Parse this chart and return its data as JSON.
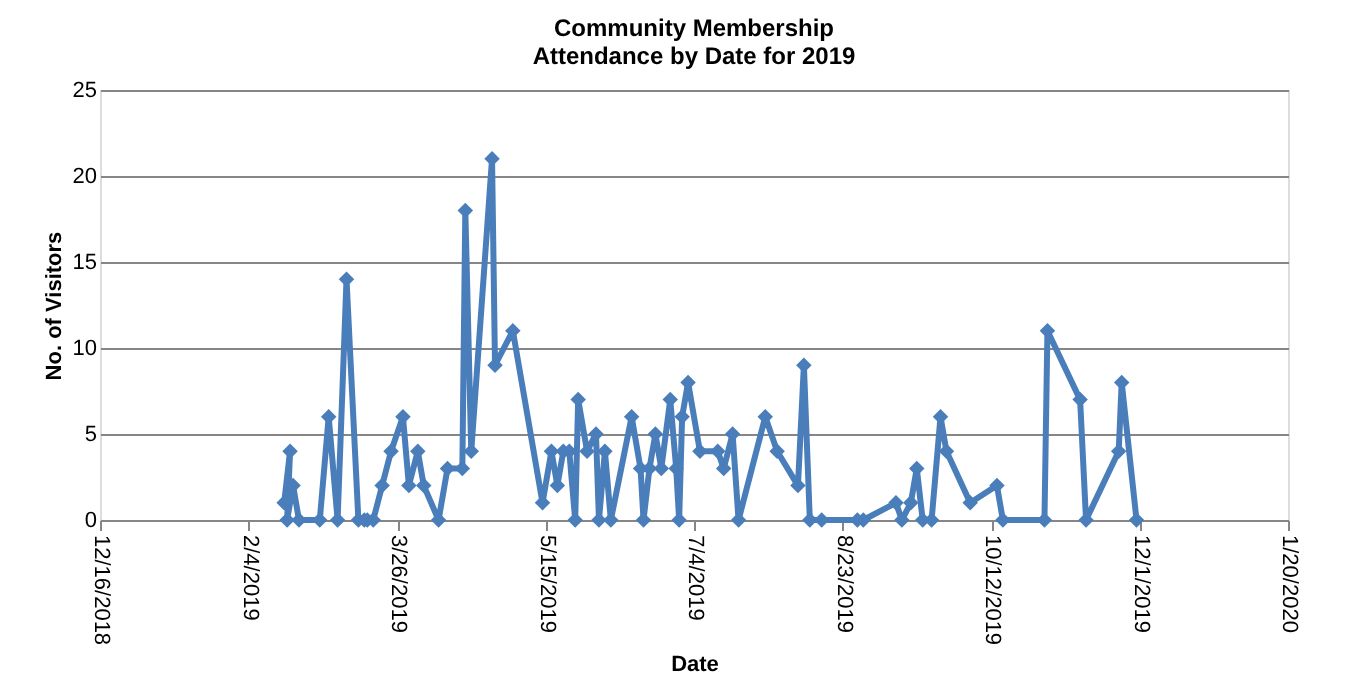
{
  "chart_data": {
    "type": "line",
    "title": "Community  Membership\nAttendance by Date for 2019",
    "xlabel": "Date",
    "ylabel": "No. of Visitors",
    "x": [
      "2019-02-16",
      "2019-02-18",
      "2019-02-17",
      "2019-02-19",
      "2019-02-21",
      "2019-02-28",
      "2019-03-03",
      "2019-03-06",
      "2019-03-09",
      "2019-03-13",
      "2019-03-15",
      "2019-03-16",
      "2019-03-18",
      "2019-03-21",
      "2019-03-24",
      "2019-03-28",
      "2019-03-30",
      "2019-04-02",
      "2019-04-04",
      "2019-04-09",
      "2019-04-12",
      "2019-04-17",
      "2019-04-18",
      "2019-04-20",
      "2019-04-27",
      "2019-04-28",
      "2019-05-04",
      "2019-05-14",
      "2019-05-17",
      "2019-05-19",
      "2019-05-21",
      "2019-05-23",
      "2019-05-25",
      "2019-05-26",
      "2019-05-29",
      "2019-06-01",
      "2019-06-02",
      "2019-06-04",
      "2019-06-06",
      "2019-06-13",
      "2019-06-16",
      "2019-06-17",
      "2019-06-19",
      "2019-06-21",
      "2019-06-23",
      "2019-06-26",
      "2019-06-28",
      "2019-06-29",
      "2019-06-30",
      "2019-07-02",
      "2019-07-06",
      "2019-07-12",
      "2019-07-14",
      "2019-07-17",
      "2019-07-19",
      "2019-07-28",
      "2019-08-01",
      "2019-08-08",
      "2019-08-10",
      "2019-08-12",
      "2019-08-16",
      "2019-08-28",
      "2019-08-30",
      "2019-09-10",
      "2019-09-12",
      "2019-09-15",
      "2019-09-17",
      "2019-09-19",
      "2019-09-22",
      "2019-09-25",
      "2019-09-27",
      "2019-10-05",
      "2019-10-14",
      "2019-10-16",
      "2019-10-30",
      "2019-10-31",
      "2019-11-11",
      "2019-11-13",
      "2019-11-24",
      "2019-11-25",
      "2019-11-30"
    ],
    "series": [
      {
        "color": "#4a7ebb",
        "values": [
          1,
          4,
          0,
          2,
          0,
          0,
          6,
          0,
          14,
          0,
          0,
          0,
          0,
          2,
          4,
          6,
          2,
          4,
          2,
          0,
          3,
          3,
          18,
          4,
          21,
          9,
          11,
          1,
          4,
          2,
          4,
          4,
          0,
          7,
          4,
          5,
          0,
          4,
          0,
          6,
          3,
          0,
          3,
          5,
          3,
          7,
          3,
          0,
          6,
          8,
          4,
          4,
          3,
          5,
          0,
          6,
          4,
          2,
          9,
          0,
          0,
          0,
          0,
          1,
          0,
          1,
          3,
          0,
          0,
          6,
          4,
          1,
          2,
          0,
          0,
          11,
          7,
          0,
          4,
          8,
          0
        ]
      }
    ],
    "xlim": [
      "2018-12-16",
      "2020-01-20"
    ],
    "xticks": [
      {
        "value": "2018-12-16",
        "label": "12/16/2018"
      },
      {
        "value": "2019-02-04",
        "label": "2/4/2019"
      },
      {
        "value": "2019-03-26",
        "label": "3/26/2019"
      },
      {
        "value": "2019-05-15",
        "label": "5/15/2019"
      },
      {
        "value": "2019-07-04",
        "label": "7/4/2019"
      },
      {
        "value": "2019-08-23",
        "label": "8/23/2019"
      },
      {
        "value": "2019-10-12",
        "label": "10/12/2019"
      },
      {
        "value": "2019-12-01",
        "label": "12/1/2019"
      },
      {
        "value": "2020-01-20",
        "label": "1/20/2020"
      }
    ],
    "ylim": [
      0,
      25
    ],
    "yticks": [
      0,
      5,
      10,
      15,
      20,
      25
    ],
    "grid": "y",
    "marker": "diamond",
    "line_style": "solid"
  }
}
